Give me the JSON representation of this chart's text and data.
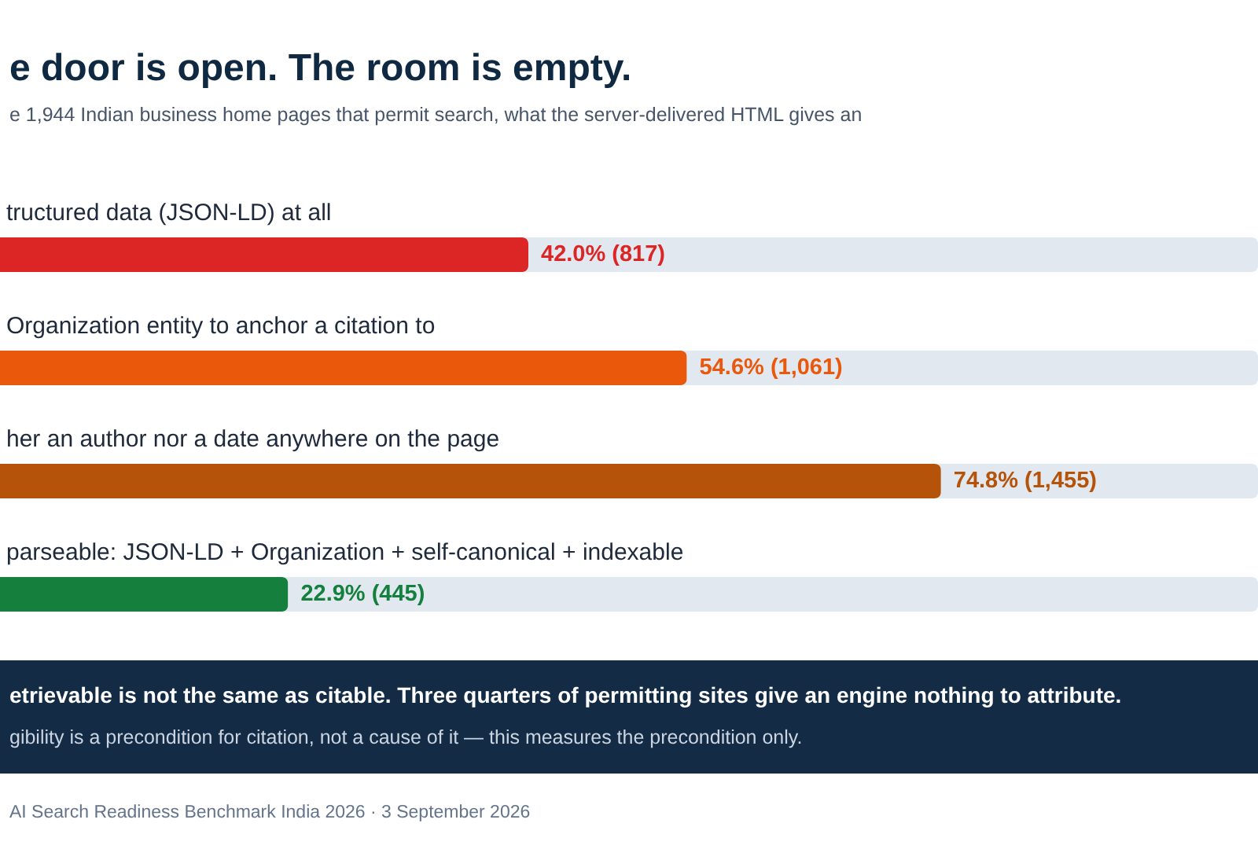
{
  "chart_data": {
    "type": "bar",
    "orientation": "horizontal",
    "title": "e door is open. The room is empty.",
    "subtitle": "e 1,944 Indian business home pages that permit search, what the server-delivered HTML gives an",
    "categories": [
      "tructured data (JSON-LD) at all",
      "Organization entity to anchor a citation to",
      "her an author nor a date anywhere on the page",
      "parseable: JSON-LD + Organization + self-canonical + indexable"
    ],
    "values": [
      42.0,
      54.6,
      74.8,
      22.9
    ],
    "colors": [
      "#dc2626",
      "#ea580c",
      "#b45309",
      "#15803d"
    ],
    "value_labels": [
      "42.0% (817)",
      "54.6% (1,061)",
      "74.8% (1,455)",
      "22.9% (445)"
    ],
    "xlim": [
      0,
      100
    ],
    "annotations": [
      "etrievable is not the same as citable. Three quarters of permitting sites give an engine nothing to attribute.",
      "gibility is a precondition for citation, not a cause of it — this measures the precondition only.",
      "AI Search Readiness Benchmark India 2026 · 3 September 2026"
    ]
  }
}
